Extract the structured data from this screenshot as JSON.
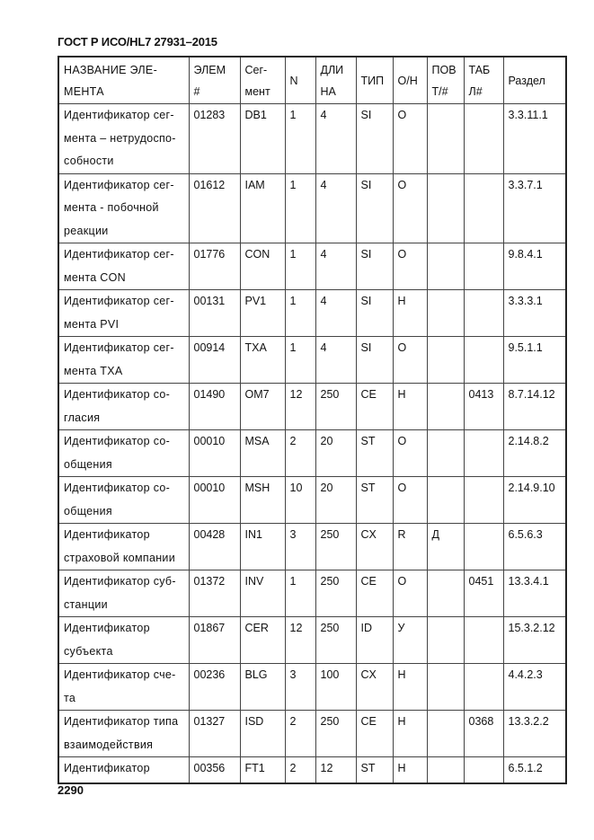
{
  "header_title": "ГОСТ Р ИСО/HL7 27931–2015",
  "page_number": "2290",
  "columns": [
    "НАЗВАНИЕ         ЭЛЕ-\nМЕНТА",
    "ЭЛЕМ\n#",
    "Сег-\nмент",
    "N",
    "ДЛИ\nНА",
    "ТИП",
    "О/Н",
    "ПОВ\nТ/#",
    "ТАБ\nЛ#",
    "Раздел"
  ],
  "rows": [
    [
      "Идентификатор   сег-\nмента – нетрудоспо-\nсобности",
      "01283",
      "DB1",
      "1",
      "4",
      "SI",
      "О",
      "",
      "",
      "3.3.11.1"
    ],
    [
      "Идентификатор   сег-\nмента   -   побочной\nреакции",
      "01612",
      "IAM",
      "1",
      "4",
      "SI",
      "О",
      "",
      "",
      "3.3.7.1"
    ],
    [
      "Идентификатор   сег-\nмента CON",
      "01776",
      "CON",
      "1",
      "4",
      "SI",
      "О",
      "",
      "",
      "9.8.4.1"
    ],
    [
      "Идентификатор   сег-\nмента PVI",
      "00131",
      "PV1",
      "1",
      "4",
      "SI",
      "Н",
      "",
      "",
      "3.3.3.1"
    ],
    [
      "Идентификатор   сег-\nмента TXA",
      "00914",
      "TXA",
      "1",
      "4",
      "SI",
      "О",
      "",
      "",
      "9.5.1.1"
    ],
    [
      "Идентификатор    со-\nгласия",
      "01490",
      "OM7",
      "12",
      "250",
      "CE",
      "Н",
      "",
      "0413",
      "8.7.14.12"
    ],
    [
      "Идентификатор    со-\nобщения",
      "00010",
      "MSA",
      "2",
      "20",
      "ST",
      "О",
      "",
      "",
      "2.14.8.2"
    ],
    [
      "Идентификатор    со-\nобщения",
      "00010",
      "MSH",
      "10",
      "20",
      "ST",
      "О",
      "",
      "",
      "2.14.9.10"
    ],
    [
      "Идентификатор\nстраховой компании",
      "00428",
      "IN1",
      "3",
      "250",
      "CX",
      "R",
      "Д",
      "",
      "6.5.6.3"
    ],
    [
      "Идентификатор   суб-\nстанции",
      "01372",
      "INV",
      "1",
      "250",
      "CE",
      "О",
      "",
      "0451",
      "13.3.4.1"
    ],
    [
      "Идентификатор\nсубъекта",
      "01867",
      "CER",
      "12",
      "250",
      "ID",
      "У",
      "",
      "",
      "15.3.2.12"
    ],
    [
      "Идентификатор   сче-\nта",
      "00236",
      "BLG",
      "3",
      "100",
      "CX",
      "Н",
      "",
      "",
      "4.4.2.3"
    ],
    [
      "Идентификатор типа\nвзаимодействия",
      "01327",
      "ISD",
      "2",
      "250",
      "CE",
      "Н",
      "",
      "0368",
      "13.3.2.2"
    ],
    [
      "Идентификатор",
      "00356",
      "FT1",
      "2",
      "12",
      "ST",
      "Н",
      "",
      "",
      "6.5.1.2"
    ]
  ]
}
